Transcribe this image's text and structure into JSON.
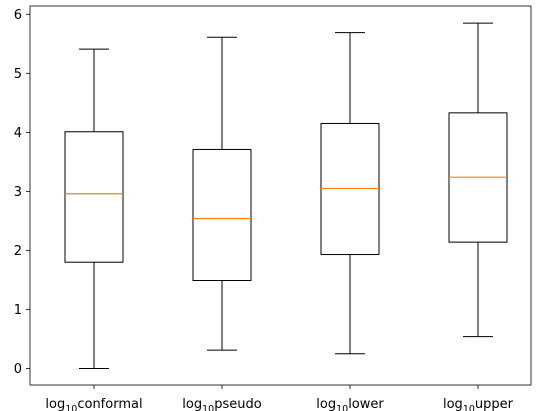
{
  "chart_data": {
    "type": "boxplot",
    "categories": [
      {
        "base": "log",
        "sub": "10",
        "name": "conformal"
      },
      {
        "base": "log",
        "sub": "10",
        "name": "pseudo"
      },
      {
        "base": "log",
        "sub": "10",
        "name": "lower"
      },
      {
        "base": "log",
        "sub": "10",
        "name": "upper"
      }
    ],
    "boxes": [
      {
        "whislo": 0.0,
        "q1": 1.8,
        "med": 2.96,
        "q3": 4.01,
        "whishi": 5.41
      },
      {
        "whislo": 0.31,
        "q1": 1.49,
        "med": 2.54,
        "q3": 3.71,
        "whishi": 5.61
      },
      {
        "whislo": 0.25,
        "q1": 1.93,
        "med": 3.05,
        "q3": 4.15,
        "whishi": 5.69
      },
      {
        "whislo": 0.54,
        "q1": 2.14,
        "med": 3.24,
        "q3": 4.33,
        "whishi": 5.85
      }
    ],
    "ylim": [
      -0.28,
      6.14
    ],
    "yticks": [
      0,
      1,
      2,
      3,
      4,
      5,
      6
    ],
    "xlabel": "",
    "ylabel": "",
    "title": "",
    "grid": false,
    "colors": {
      "box": "#000000",
      "median": "#ff7f0e"
    }
  }
}
